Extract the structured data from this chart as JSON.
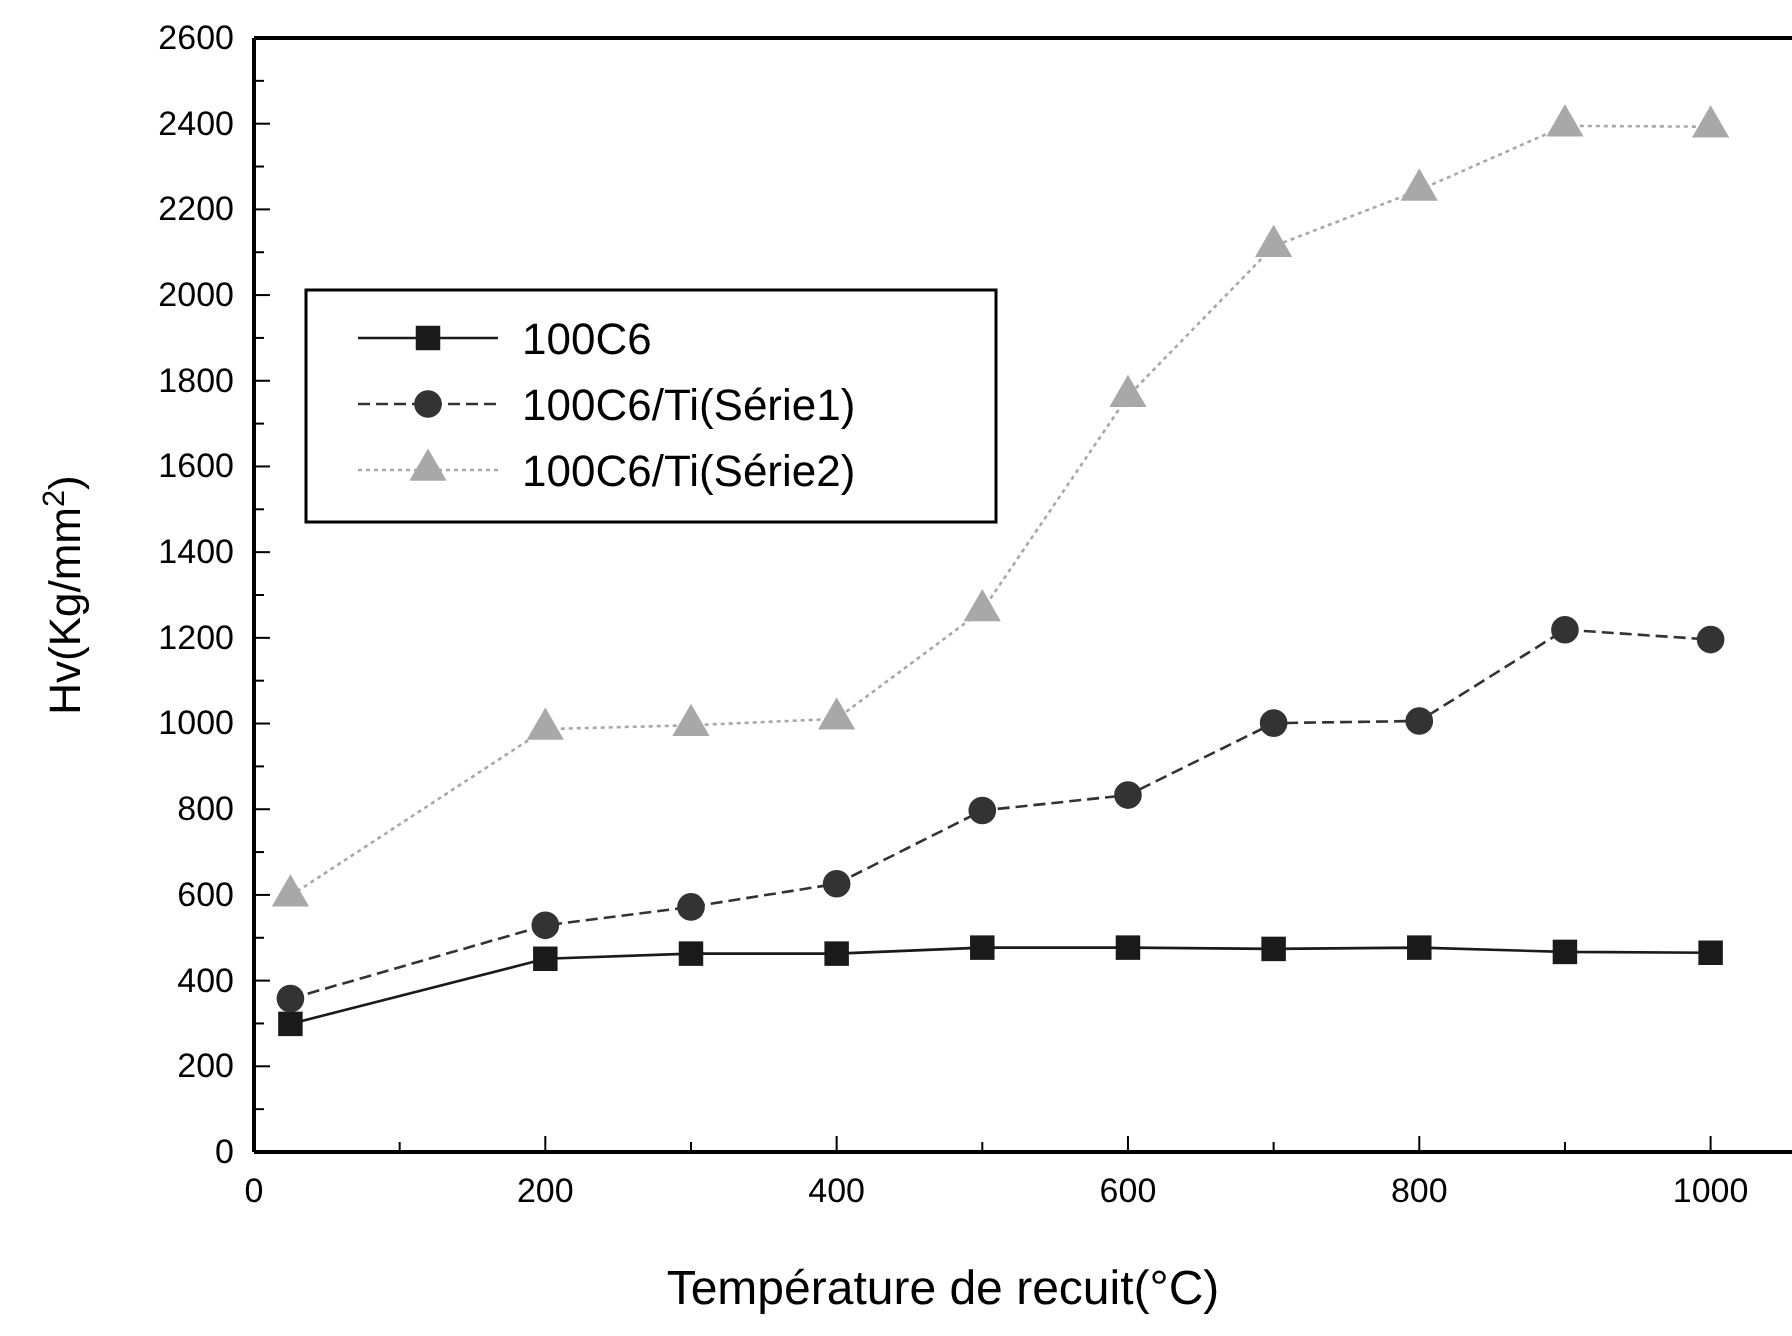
{
  "chart_data": {
    "type": "line",
    "xlabel": "Température de recuit(°C)",
    "ylabel": "Hv(Kg/mm$^{2}$)",
    "x": [
      25,
      200,
      300,
      400,
      500,
      600,
      700,
      800,
      900,
      1000
    ],
    "series": [
      {
        "name": "100C6",
        "color": "#1a1a1a",
        "marker": "square",
        "line_style": "solid",
        "values": [
          299,
          451,
          463,
          463,
          477,
          477,
          474,
          477,
          467,
          465
        ]
      },
      {
        "name": "100C6/Ti(Série1)",
        "color": "#333333",
        "marker": "circle",
        "line_style": "dashed",
        "values": [
          358,
          529,
          572,
          626,
          797,
          833,
          1001,
          1006,
          1219,
          1196
        ]
      },
      {
        "name": "100C6/Ti(Série2)",
        "color": "#a8a8a8",
        "marker": "triangle",
        "line_style": "dotted",
        "values": [
          598,
          987,
          996,
          1011,
          1264,
          1764,
          2114,
          2245,
          2395,
          2393
        ]
      }
    ],
    "xlim": [
      0,
      1060
    ],
    "xticks": [
      0,
      {
        "value": 100,
        "label": null
      },
      200,
      {
        "value": 300,
        "label": null
      },
      400,
      {
        "value": 500,
        "label": null
      },
      600,
      {
        "value": 700,
        "label": null
      },
      800,
      {
        "value": 900,
        "label": null
      },
      1000
    ],
    "ylim": [
      0,
      2600
    ],
    "yticks": [
      0,
      {
        "value": 100,
        "label": null
      },
      200,
      {
        "value": 300,
        "label": null
      },
      400,
      {
        "value": 500,
        "label": null
      },
      600,
      {
        "value": 700,
        "label": null
      },
      800,
      {
        "value": 900,
        "label": null
      },
      1000,
      {
        "value": 1100,
        "label": null
      },
      1200,
      {
        "value": 1300,
        "label": null
      },
      1400,
      {
        "value": 1500,
        "label": null
      },
      1600,
      {
        "value": 1700,
        "label": null
      },
      1800,
      {
        "value": 1900,
        "label": null
      },
      2000,
      {
        "value": 2100,
        "label": null
      },
      2200,
      {
        "value": 2300,
        "label": null
      },
      2400,
      {
        "value": 2500,
        "label": null
      },
      2600
    ],
    "grid": false,
    "legend": "left"
  }
}
